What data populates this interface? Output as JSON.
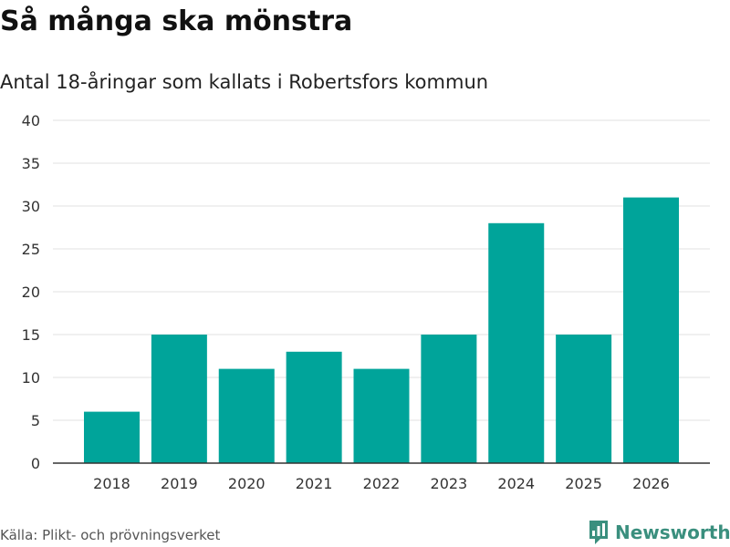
{
  "header": {
    "title": "Så många ska mönstra",
    "subtitle": "Antal 18-åringar som kallats i Robertsfors kommun"
  },
  "footer": {
    "source": "Källa: Plikt- och prövningsverket",
    "brand": "Newsworthy"
  },
  "colors": {
    "bar": "#00a49a",
    "grid": "#e0e0e0",
    "axis": "#333333",
    "brand": "#3a8f7e"
  },
  "chart_data": {
    "type": "bar",
    "title": "Så många ska mönstra",
    "subtitle": "Antal 18-åringar som kallats i Robertsfors kommun",
    "xlabel": "",
    "ylabel": "",
    "categories": [
      "2018",
      "2019",
      "2020",
      "2021",
      "2022",
      "2023",
      "2024",
      "2025",
      "2026"
    ],
    "values": [
      6,
      15,
      11,
      13,
      11,
      15,
      28,
      15,
      31
    ],
    "ylim": [
      0,
      40
    ],
    "yticks": [
      0,
      5,
      10,
      15,
      20,
      25,
      30,
      35,
      40
    ],
    "grid": true,
    "legend": "none"
  }
}
